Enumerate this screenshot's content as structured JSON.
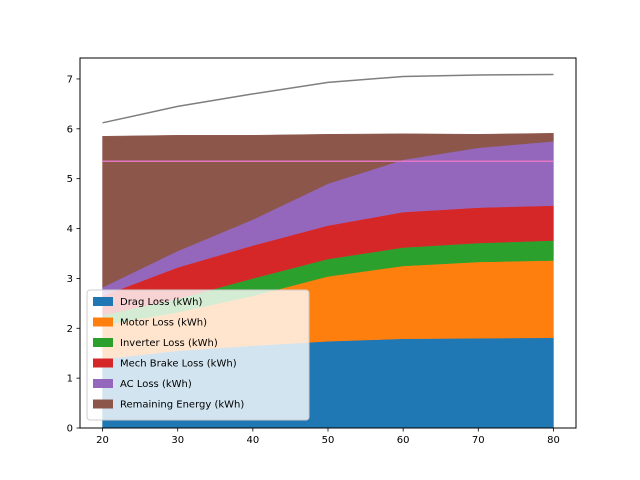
{
  "chart_data": {
    "type": "area",
    "stacked": true,
    "x": [
      20,
      30,
      40,
      50,
      60,
      70,
      80
    ],
    "xlim": [
      17,
      83
    ],
    "ylim": [
      0,
      7.42
    ],
    "xticks": [
      20,
      30,
      40,
      50,
      60,
      70,
      80
    ],
    "yticks": [
      0,
      1,
      2,
      3,
      4,
      5,
      6,
      7
    ],
    "grid": false,
    "legend_position": "lower-left",
    "series": [
      {
        "name": "Drag Loss (kWh)",
        "color": "#1f77b4",
        "values": [
          1.38,
          1.55,
          1.65,
          1.74,
          1.79,
          1.8,
          1.81
        ]
      },
      {
        "name": "Motor Loss (kWh)",
        "color": "#ff7f0e",
        "values": [
          0.68,
          0.77,
          1.0,
          1.3,
          1.46,
          1.53,
          1.55
        ]
      },
      {
        "name": "Inverter Loss (kWh)",
        "color": "#2ca02c",
        "values": [
          0.2,
          0.27,
          0.35,
          0.35,
          0.37,
          0.38,
          0.4
        ]
      },
      {
        "name": "Mech Brake Loss (kWh)",
        "color": "#d62728",
        "values": [
          0.39,
          0.63,
          0.66,
          0.67,
          0.71,
          0.71,
          0.7
        ]
      },
      {
        "name": "AC Loss (kWh)",
        "color": "#9467bd",
        "values": [
          0.17,
          0.33,
          0.52,
          0.84,
          1.05,
          1.2,
          1.29
        ]
      },
      {
        "name": "Remaining Energy (kWh)",
        "color": "#8c564b",
        "values": [
          3.03,
          2.32,
          1.69,
          0.99,
          0.52,
          0.27,
          0.16
        ]
      }
    ],
    "lines": [
      {
        "color": "#7f7f7f",
        "values": [
          6.12,
          6.45,
          6.7,
          6.93,
          7.05,
          7.08,
          7.09
        ]
      },
      {
        "color": "#e377c2",
        "values": [
          5.35,
          5.35,
          5.35,
          5.35,
          5.35,
          5.35,
          5.35
        ]
      }
    ]
  }
}
